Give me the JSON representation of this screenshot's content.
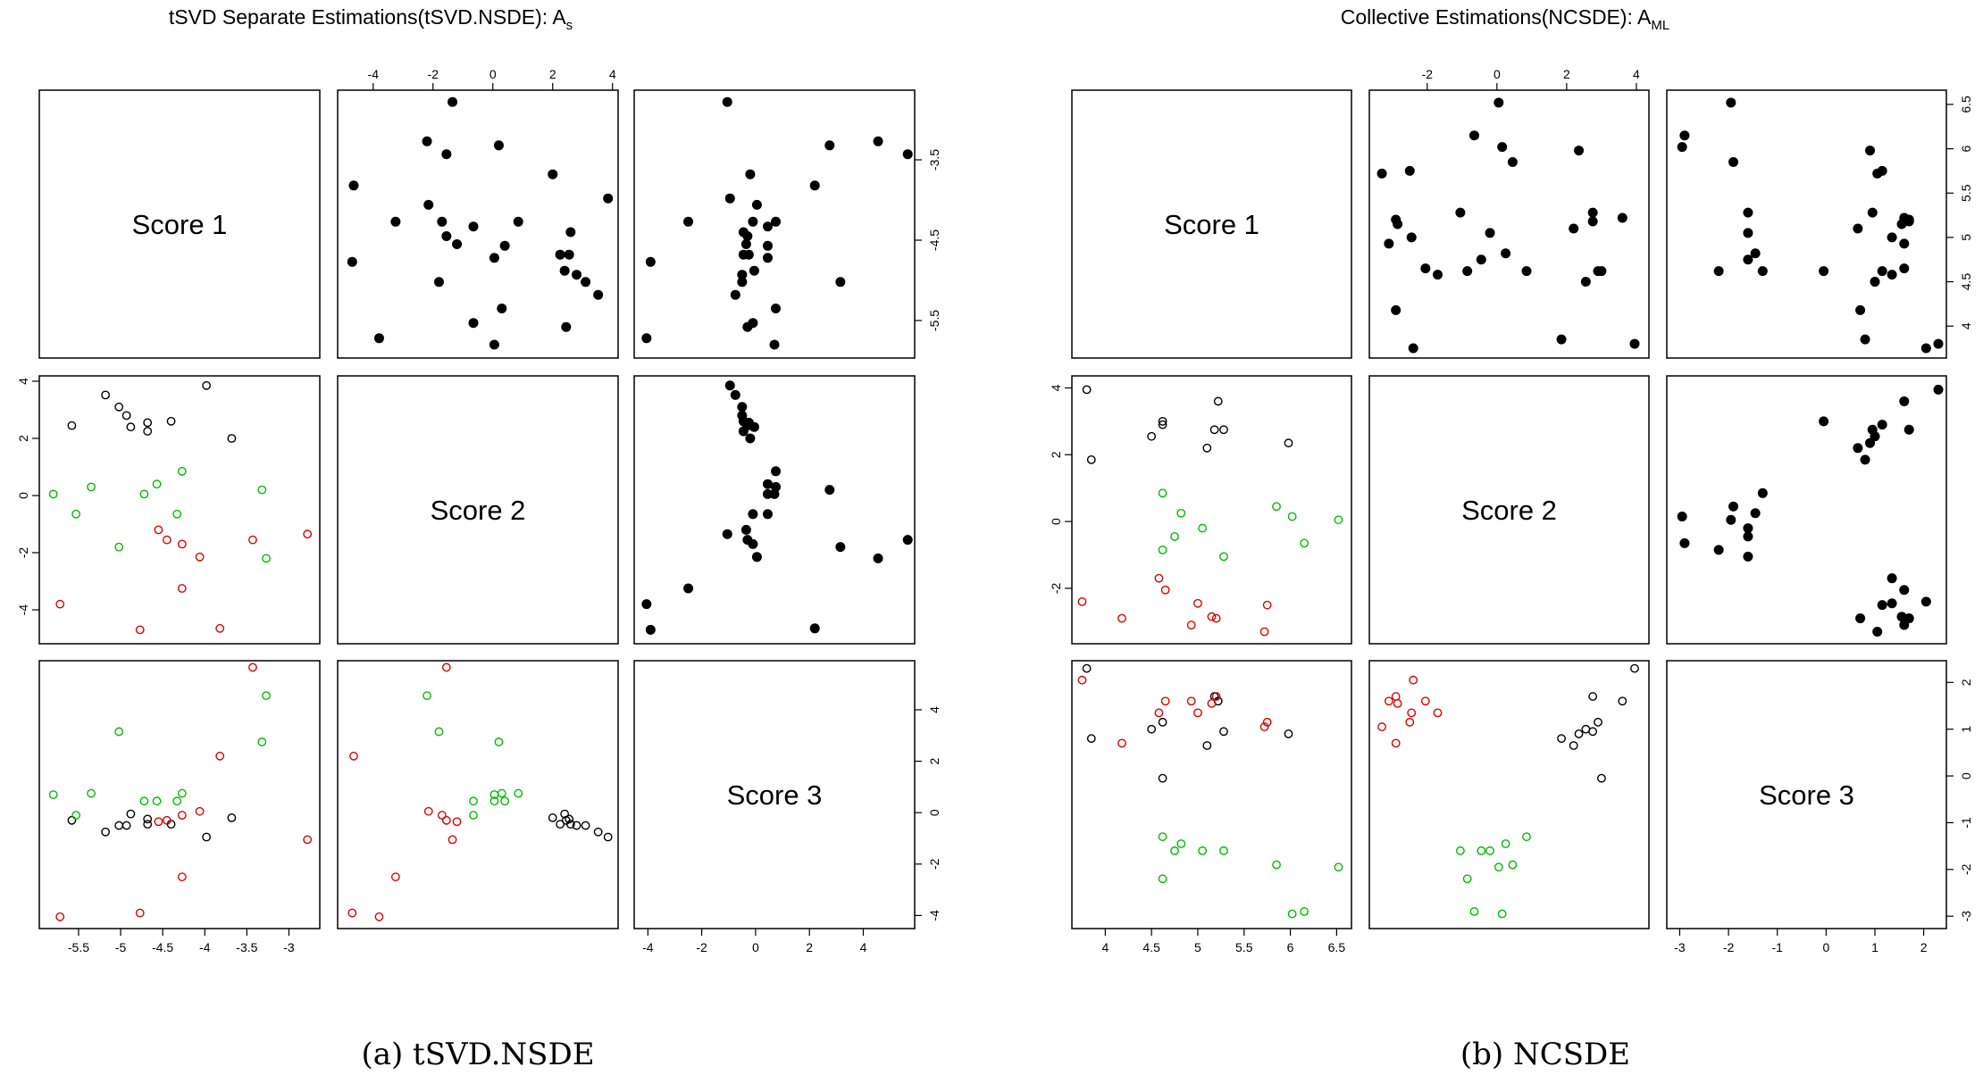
{
  "colors": {
    "black": "#000000",
    "green": "#00bb00",
    "red": "#dd0000"
  },
  "chart_data": [
    {
      "type": "scatter",
      "kind": "pairs-matrix",
      "title": "tSVD Separate Estimations(tSVD.NSDE): A",
      "title_sub": "s",
      "caption": "(a) tSVD.NSDE",
      "variables": [
        "Score 1",
        "Score 2",
        "Score 3"
      ],
      "ranges": [
        [
          -5.9,
          -2.7
        ],
        [
          -5.0,
          4.0
        ],
        [
          -4.3,
          5.7
        ]
      ],
      "axes": {
        "top_1": {
          "ticks": [
            -4,
            -2,
            0,
            2,
            4
          ]
        },
        "right_0": {
          "ticks": [
            -3.5,
            -4.5,
            -5.5
          ]
        },
        "bottom_0": {
          "ticks": [
            -5.5,
            -5.0,
            -4.5,
            -4.0,
            -3.5,
            -3.0
          ]
        },
        "left_1": {
          "ticks": [
            4,
            2,
            0,
            -2,
            -4
          ]
        },
        "right_2": {
          "ticks": [
            4,
            2,
            0,
            -2,
            -4
          ]
        },
        "bottom_2": {
          "ticks": [
            -4,
            -2,
            0,
            2,
            4
          ]
        }
      },
      "points": [
        {
          "s1": -5.18,
          "s2": 3.52,
          "s3": -0.75,
          "g": "black"
        },
        {
          "s1": -5.02,
          "s2": 3.1,
          "s3": -0.5,
          "g": "black"
        },
        {
          "s1": -4.93,
          "s2": 2.8,
          "s3": -0.5,
          "g": "black"
        },
        {
          "s1": -4.88,
          "s2": 2.4,
          "s3": -0.05,
          "g": "black"
        },
        {
          "s1": -4.68,
          "s2": 2.55,
          "s3": -0.25,
          "g": "black"
        },
        {
          "s1": -4.68,
          "s2": 2.25,
          "s3": -0.45,
          "g": "black"
        },
        {
          "s1": -4.4,
          "s2": 2.6,
          "s3": -0.45,
          "g": "black"
        },
        {
          "s1": -3.98,
          "s2": 3.85,
          "s3": -0.95,
          "g": "black"
        },
        {
          "s1": -5.58,
          "s2": 2.45,
          "s3": -0.3,
          "g": "black"
        },
        {
          "s1": -3.68,
          "s2": 2.0,
          "s3": -0.2,
          "g": "black"
        },
        {
          "s1": -5.8,
          "s2": 0.05,
          "s3": 0.7,
          "g": "green"
        },
        {
          "s1": -5.53,
          "s2": -0.65,
          "s3": -0.1,
          "g": "green"
        },
        {
          "s1": -5.35,
          "s2": 0.3,
          "s3": 0.75,
          "g": "green"
        },
        {
          "s1": -5.02,
          "s2": -1.8,
          "s3": 3.15,
          "g": "green"
        },
        {
          "s1": -4.72,
          "s2": 0.05,
          "s3": 0.45,
          "g": "green"
        },
        {
          "s1": -4.57,
          "s2": 0.4,
          "s3": 0.45,
          "g": "green"
        },
        {
          "s1": -4.33,
          "s2": -0.65,
          "s3": 0.45,
          "g": "green"
        },
        {
          "s1": -4.27,
          "s2": 0.85,
          "s3": 0.75,
          "g": "green"
        },
        {
          "s1": -3.32,
          "s2": 0.2,
          "s3": 2.75,
          "g": "green"
        },
        {
          "s1": -3.27,
          "s2": -2.2,
          "s3": 4.55,
          "g": "green"
        },
        {
          "s1": -5.72,
          "s2": -3.8,
          "s3": -4.05,
          "g": "red"
        },
        {
          "s1": -4.77,
          "s2": -4.7,
          "s3": -3.9,
          "g": "red"
        },
        {
          "s1": -4.55,
          "s2": -1.2,
          "s3": -0.35,
          "g": "red"
        },
        {
          "s1": -4.45,
          "s2": -1.55,
          "s3": -0.3,
          "g": "red"
        },
        {
          "s1": -4.27,
          "s2": -1.7,
          "s3": -0.1,
          "g": "red"
        },
        {
          "s1": -4.27,
          "s2": -3.25,
          "s3": -2.5,
          "g": "red"
        },
        {
          "s1": -4.06,
          "s2": -2.15,
          "s3": 0.05,
          "g": "red"
        },
        {
          "s1": -3.82,
          "s2": -4.65,
          "s3": 2.2,
          "g": "red"
        },
        {
          "s1": -3.43,
          "s2": -1.55,
          "s3": 5.65,
          "g": "red"
        },
        {
          "s1": -2.78,
          "s2": -1.35,
          "s3": -1.05,
          "g": "red"
        }
      ]
    },
    {
      "type": "scatter",
      "kind": "pairs-matrix",
      "title": "Collective Estimations(NCSDE): A",
      "title_sub": "ML",
      "caption": "(b) NCSDE",
      "variables": [
        "Score 1",
        "Score 2",
        "Score 3"
      ],
      "ranges": [
        [
          3.7,
          6.6
        ],
        [
          -3.5,
          4.2
        ],
        [
          -3.15,
          2.35
        ]
      ],
      "axes": {
        "top_1": {
          "ticks": [
            -2,
            0,
            2,
            4
          ]
        },
        "right_0": {
          "ticks": [
            6.5,
            6.0,
            5.5,
            5.0,
            4.5,
            4.0
          ]
        },
        "bottom_0": {
          "ticks": [
            4.0,
            4.5,
            5.0,
            5.5,
            6.0,
            6.5
          ]
        },
        "left_1": {
          "ticks": [
            4,
            2,
            0,
            -2
          ]
        },
        "right_2": {
          "ticks": [
            2,
            1,
            0,
            -1,
            -2,
            -3
          ]
        },
        "bottom_2": {
          "ticks": [
            -3,
            -2,
            -1,
            0,
            1,
            2
          ]
        }
      },
      "points": [
        {
          "s1": 3.8,
          "s2": 3.95,
          "s3": 2.3,
          "g": "black"
        },
        {
          "s1": 3.85,
          "s2": 1.85,
          "s3": 0.8,
          "g": "black"
        },
        {
          "s1": 4.5,
          "s2": 2.55,
          "s3": 1.0,
          "g": "black"
        },
        {
          "s1": 4.62,
          "s2": 2.9,
          "s3": 1.15,
          "g": "black"
        },
        {
          "s1": 4.62,
          "s2": 3.0,
          "s3": -0.05,
          "g": "black"
        },
        {
          "s1": 5.1,
          "s2": 2.2,
          "s3": 0.65,
          "g": "black"
        },
        {
          "s1": 5.18,
          "s2": 2.75,
          "s3": 1.7,
          "g": "black"
        },
        {
          "s1": 5.22,
          "s2": 3.6,
          "s3": 1.6,
          "g": "black"
        },
        {
          "s1": 5.28,
          "s2": 2.75,
          "s3": 0.95,
          "g": "black"
        },
        {
          "s1": 5.98,
          "s2": 2.35,
          "s3": 0.9,
          "g": "black"
        },
        {
          "s1": 4.62,
          "s2": 0.85,
          "s3": -1.3,
          "g": "green"
        },
        {
          "s1": 4.62,
          "s2": -0.85,
          "s3": -2.2,
          "g": "green"
        },
        {
          "s1": 4.75,
          "s2": -0.45,
          "s3": -1.6,
          "g": "green"
        },
        {
          "s1": 4.82,
          "s2": 0.25,
          "s3": -1.45,
          "g": "green"
        },
        {
          "s1": 5.05,
          "s2": -0.2,
          "s3": -1.6,
          "g": "green"
        },
        {
          "s1": 5.28,
          "s2": -1.05,
          "s3": -1.6,
          "g": "green"
        },
        {
          "s1": 5.85,
          "s2": 0.45,
          "s3": -1.9,
          "g": "green"
        },
        {
          "s1": 6.02,
          "s2": 0.15,
          "s3": -2.95,
          "g": "green"
        },
        {
          "s1": 6.15,
          "s2": -0.65,
          "s3": -2.9,
          "g": "green"
        },
        {
          "s1": 6.52,
          "s2": 0.05,
          "s3": -1.95,
          "g": "green"
        },
        {
          "s1": 3.75,
          "s2": -2.4,
          "s3": 2.05,
          "g": "red"
        },
        {
          "s1": 4.18,
          "s2": -2.9,
          "s3": 0.7,
          "g": "red"
        },
        {
          "s1": 4.58,
          "s2": -1.7,
          "s3": 1.35,
          "g": "red"
        },
        {
          "s1": 4.65,
          "s2": -2.05,
          "s3": 1.6,
          "g": "red"
        },
        {
          "s1": 4.93,
          "s2": -3.1,
          "s3": 1.6,
          "g": "red"
        },
        {
          "s1": 5.0,
          "s2": -2.45,
          "s3": 1.35,
          "g": "red"
        },
        {
          "s1": 5.15,
          "s2": -2.85,
          "s3": 1.55,
          "g": "red"
        },
        {
          "s1": 5.2,
          "s2": -2.9,
          "s3": 1.7,
          "g": "red"
        },
        {
          "s1": 5.72,
          "s2": -3.3,
          "s3": 1.05,
          "g": "red"
        },
        {
          "s1": 5.75,
          "s2": -2.5,
          "s3": 1.15,
          "g": "red"
        }
      ]
    }
  ]
}
